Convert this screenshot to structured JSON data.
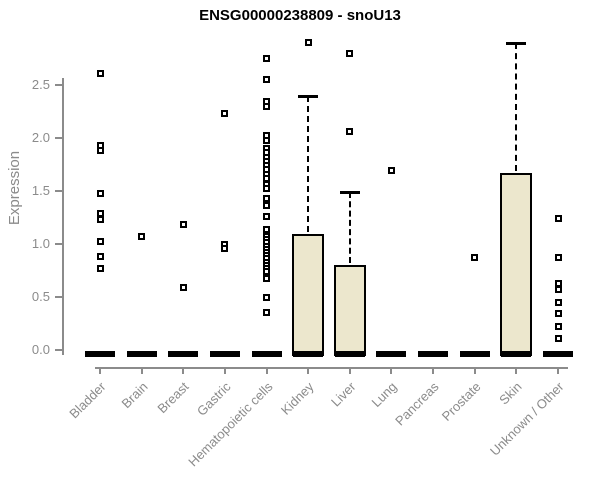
{
  "chart_data": {
    "type": "boxplot",
    "title": "ENSG00000238809 - snoU13",
    "ylabel": "Expression",
    "xlabel": "",
    "ytick_labels": [
      "0.0",
      "0.5",
      "1.0",
      "1.5",
      "2.0",
      "2.5"
    ],
    "ylim": [
      0,
      2.95
    ],
    "grid": false,
    "legend": false,
    "colors": {
      "box_fill": "#ece7cd",
      "box_border": "#000000",
      "axis": "#8b8b8b",
      "tick_label": "#8b8b8b",
      "title": "#000000",
      "outlier": "#000000"
    },
    "categories": [
      "Bladder",
      "Brain",
      "Breast",
      "Gastric",
      "Hematopoietic cells",
      "Kidney",
      "Liver",
      "Lung",
      "Pancreas",
      "Prostate",
      "Skin",
      "Unknown / Other"
    ],
    "series": [
      {
        "category": "Bladder",
        "whisker_low": 0,
        "q1": 0,
        "median": 0,
        "q3": 0,
        "whisker_high": 0,
        "outliers": [
          2.61,
          1.93,
          1.88,
          1.48,
          1.29,
          1.23,
          1.02,
          0.88,
          0.77
        ]
      },
      {
        "category": "Brain",
        "whisker_low": 0,
        "q1": 0,
        "median": 0,
        "q3": 0,
        "whisker_high": 0,
        "outliers": [
          1.07
        ]
      },
      {
        "category": "Breast",
        "whisker_low": 0,
        "q1": 0,
        "median": 0,
        "q3": 0,
        "whisker_high": 0,
        "outliers": [
          1.18,
          0.59
        ]
      },
      {
        "category": "Gastric",
        "whisker_low": 0,
        "q1": 0,
        "median": 0,
        "q3": 0,
        "whisker_high": 0,
        "outliers": [
          2.23,
          1.0,
          0.96
        ]
      },
      {
        "category": "Hematopoietic cells",
        "whisker_low": 0,
        "q1": 0,
        "median": 0,
        "q3": 0,
        "whisker_high": 0,
        "outliers": [
          2.75,
          2.55,
          2.34,
          2.3,
          2.02,
          1.98,
          1.9,
          1.86,
          1.82,
          1.78,
          1.74,
          1.7,
          1.66,
          1.62,
          1.56,
          1.52,
          1.43,
          1.36,
          1.26,
          1.14,
          1.07,
          1.04,
          1.01,
          0.98,
          0.95,
          0.92,
          0.89,
          0.86,
          0.83,
          0.8,
          0.77,
          0.74,
          0.67,
          0.5,
          0.35
        ]
      },
      {
        "category": "Kidney",
        "whisker_low": 0,
        "q1": 0,
        "median": 0,
        "q3": 1.09,
        "whisker_high": 2.4,
        "outliers": [
          2.9
        ]
      },
      {
        "category": "Liver",
        "whisker_low": 0,
        "q1": 0,
        "median": 0,
        "q3": 0.8,
        "whisker_high": 1.49,
        "outliers": [
          2.8,
          2.06
        ]
      },
      {
        "category": "Lung",
        "whisker_low": 0,
        "q1": 0,
        "median": 0,
        "q3": 0,
        "whisker_high": 0,
        "outliers": [
          1.69
        ]
      },
      {
        "category": "Pancreas",
        "whisker_low": 0,
        "q1": 0,
        "median": 0,
        "q3": 0,
        "whisker_high": 0,
        "outliers": []
      },
      {
        "category": "Prostate",
        "whisker_low": 0,
        "q1": 0,
        "median": 0,
        "q3": 0,
        "whisker_high": 0,
        "outliers": [
          0.87
        ]
      },
      {
        "category": "Skin",
        "whisker_low": 0,
        "q1": 0,
        "median": 0,
        "q3": 1.67,
        "whisker_high": 2.9,
        "outliers": []
      },
      {
        "category": "Unknown / Other",
        "whisker_low": 0,
        "q1": 0,
        "median": 0,
        "q3": 0,
        "whisker_high": 0,
        "outliers": [
          1.24,
          0.87,
          0.63,
          0.57,
          0.45,
          0.34,
          0.22,
          0.11
        ]
      }
    ]
  }
}
